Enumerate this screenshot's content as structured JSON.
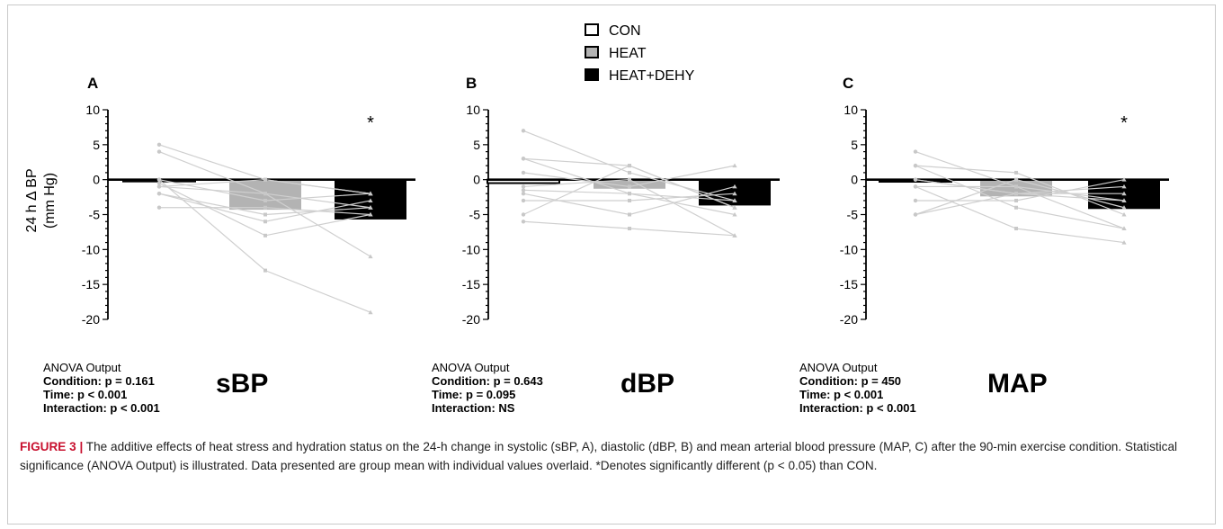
{
  "legend": [
    {
      "label": "CON",
      "color": "#ffffff"
    },
    {
      "label": "HEAT",
      "color": "#b3b3b3"
    },
    {
      "label": "HEAT+DEHY",
      "color": "#000000"
    }
  ],
  "chart_data": [
    {
      "type": "bar",
      "panel": "A",
      "name": "sBP",
      "ylabel_line1": "24 h Δ BP",
      "ylabel_line2": "(mm Hg)",
      "ylim": [
        -20,
        10
      ],
      "yticks": [
        10,
        5,
        0,
        -5,
        -10,
        -15,
        -20
      ],
      "categories": [
        "CON",
        "HEAT",
        "HEAT+DEHY"
      ],
      "values": [
        -0.2,
        -4.3,
        -5.7
      ],
      "significant": [
        false,
        false,
        true
      ],
      "individual_lines": [
        [
          5,
          0,
          -2
        ],
        [
          4,
          -2,
          -11
        ],
        [
          0,
          -13,
          -19
        ],
        [
          -0.5,
          -8,
          -5
        ],
        [
          -1,
          0,
          -2
        ],
        [
          -2,
          -6,
          -3
        ],
        [
          -2,
          -5,
          -4
        ],
        [
          -4,
          -4,
          -5
        ],
        [
          0,
          -3,
          -2
        ],
        [
          -1,
          -2,
          -4
        ]
      ],
      "anova": {
        "title": "ANOVA Output",
        "condition": "Condition: p = 0.161",
        "time": "Time: p < 0.001",
        "interaction": "Interaction: p < 0.001"
      }
    },
    {
      "type": "bar",
      "panel": "B",
      "name": "dBP",
      "ylim": [
        -20,
        10
      ],
      "yticks": [
        10,
        5,
        0,
        -5,
        -10,
        -15,
        -20
      ],
      "categories": [
        "CON",
        "HEAT",
        "HEAT+DEHY"
      ],
      "values": [
        -0.5,
        -1.3,
        -3.7
      ],
      "significant": [
        false,
        false,
        false
      ],
      "individual_lines": [
        [
          7,
          1,
          -3
        ],
        [
          3,
          2,
          -4
        ],
        [
          3,
          -2,
          -5
        ],
        [
          1,
          -1,
          2
        ],
        [
          -1,
          0,
          -8
        ],
        [
          -2,
          -5,
          -1
        ],
        [
          -3,
          -3,
          -2
        ],
        [
          -5,
          2,
          -4
        ],
        [
          -6,
          -7,
          -8
        ],
        [
          -1.5,
          -2,
          -3
        ]
      ],
      "anova": {
        "title": "ANOVA Output",
        "condition": "Condition: p = 0.643",
        "time": "Time: p = 0.095",
        "interaction": "Interaction: NS"
      }
    },
    {
      "type": "bar",
      "panel": "C",
      "name": "MAP",
      "ylim": [
        -20,
        10
      ],
      "yticks": [
        10,
        5,
        0,
        -5,
        -10,
        -15,
        -20
      ],
      "categories": [
        "CON",
        "HEAT",
        "HEAT+DEHY"
      ],
      "values": [
        -0.3,
        -2.4,
        -4.2
      ],
      "significant": [
        false,
        false,
        true
      ],
      "individual_lines": [
        [
          4,
          -1,
          -3
        ],
        [
          2,
          1,
          -5
        ],
        [
          2,
          -4,
          -7
        ],
        [
          0,
          -2,
          -1
        ],
        [
          -1,
          -7,
          -9
        ],
        [
          -3,
          -3,
          0
        ],
        [
          -5,
          0,
          -4
        ],
        [
          -5,
          -2,
          -3
        ],
        [
          -1,
          -1,
          -7
        ],
        [
          0,
          -2,
          -2
        ]
      ],
      "anova": {
        "title": "ANOVA Output",
        "condition": "Condition: p = 450",
        "time": "Time: p < 0.001",
        "interaction": "Interaction: p < 0.001"
      }
    }
  ],
  "significance_marker": "*",
  "caption": {
    "title": "FIGURE 3 |",
    "text": " The additive effects of heat stress and hydration status on the 24-h change in systolic (sBP, A), diastolic (dBP, B) and mean arterial blood pressure (MAP, C) after the 90-min exercise condition. Statistical significance (ANOVA Output) is illustrated. Data presented are group mean with individual values overlaid. *Denotes significantly different (p < 0.05) than CON."
  }
}
